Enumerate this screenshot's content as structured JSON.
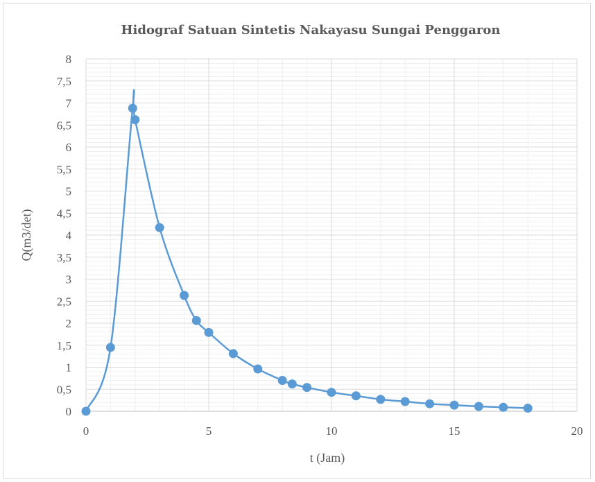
{
  "chart_data": {
    "type": "scatter",
    "title": "Hidograf Satuan Sintetis Nakayasu Sungai Penggaron",
    "xlabel": "t (Jam)",
    "ylabel": "Q(m3/det)",
    "xlim": [
      0,
      20
    ],
    "ylim": [
      0,
      8
    ],
    "x_ticks": [
      "0",
      "5",
      "10",
      "15",
      "20"
    ],
    "y_ticks": [
      "0",
      "0,5",
      "1",
      "1,5",
      "2",
      "2,5",
      "3",
      "3,5",
      "4",
      "4,5",
      "5",
      "5,5",
      "6",
      "6,5",
      "7",
      "7,5",
      "8"
    ],
    "grid": true,
    "smooth_line": true,
    "series": [
      {
        "color": "#5b9bd5",
        "x": [
          0,
          1,
          1.9,
          2,
          3,
          4,
          4.5,
          5,
          6,
          7,
          8,
          8.4,
          9,
          10,
          11,
          12,
          13,
          14,
          15,
          16,
          17,
          18
        ],
        "y": [
          0,
          1.45,
          6.88,
          6.62,
          4.17,
          2.63,
          2.06,
          1.79,
          1.31,
          0.96,
          0.7,
          0.62,
          0.54,
          0.43,
          0.35,
          0.27,
          0.22,
          0.17,
          0.14,
          0.11,
          0.09,
          0.07
        ]
      }
    ]
  }
}
